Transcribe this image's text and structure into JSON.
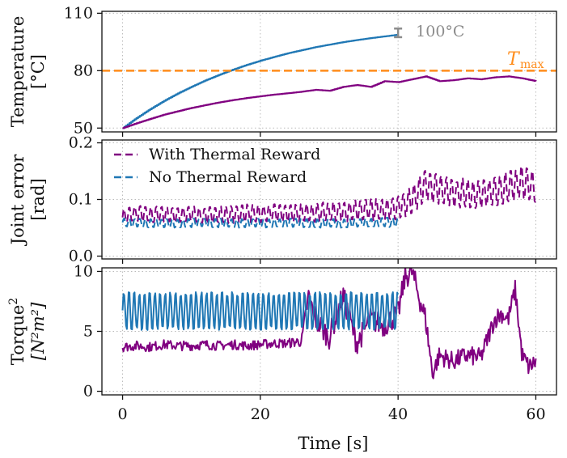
{
  "chart_data": [
    {
      "type": "line",
      "panel": "top",
      "ylabel": [
        "Temperature",
        "[°C]"
      ],
      "ylim": [
        48,
        111
      ],
      "yticks": [
        50,
        80,
        110
      ],
      "xlim": [
        -3,
        63
      ],
      "grid": true,
      "annotations": {
        "limit_label": "T",
        "limit_sub": "max",
        "limit_value": 80,
        "limit_color": "#ff8c1a",
        "error_label": "100°C",
        "error_x": 40,
        "error_range": [
          97.5,
          102
        ],
        "error_color": "#8c8c8c"
      },
      "series": [
        {
          "name": "No Thermal Reward",
          "color": "#1f77b4",
          "style": "step",
          "x": [
            0,
            2,
            4,
            6,
            8,
            10,
            12,
            14,
            16,
            18,
            20,
            22,
            24,
            26,
            28,
            30,
            32,
            34,
            36,
            38,
            40
          ],
          "y": [
            50,
            55.2,
            59.9,
            64.2,
            68.1,
            71.6,
            74.9,
            77.8,
            80.5,
            83,
            85.2,
            87.2,
            89.1,
            90.7,
            92.3,
            93.6,
            94.9,
            96,
            97,
            97.9,
            98.8
          ]
        },
        {
          "name": "With Thermal Reward",
          "color": "#800080",
          "style": "step",
          "x": [
            0,
            2,
            4,
            6,
            8,
            10,
            12,
            14,
            16,
            18,
            20,
            22,
            24,
            26,
            28,
            30,
            32,
            34,
            36,
            38,
            40,
            42,
            44,
            46,
            48,
            50,
            52,
            54,
            56,
            58,
            60
          ],
          "y": [
            50,
            52.5,
            54.8,
            57,
            58.8,
            60.5,
            62,
            63.4,
            64.6,
            65.7,
            66.6,
            67.5,
            68.2,
            69,
            70,
            69.5,
            71.5,
            72.5,
            71.5,
            74.5,
            74,
            75.5,
            77,
            74.5,
            75,
            76,
            75.5,
            76.5,
            77,
            76,
            74.5
          ]
        }
      ]
    },
    {
      "type": "line",
      "panel": "middle",
      "ylabel": [
        "Joint error",
        "[rad]"
      ],
      "ylim": [
        -0.005,
        0.205
      ],
      "yticks": [
        0.0,
        0.1,
        0.2
      ],
      "ytick_labels": [
        "0.0",
        "0.1",
        "0.2"
      ],
      "xlim": [
        -3,
        63
      ],
      "grid": true,
      "legend": {
        "placement": "top-left"
      },
      "series": [
        {
          "name": "With Thermal Reward",
          "color": "#800080",
          "style": "dashed",
          "x": [
            0,
            2,
            4,
            6,
            8,
            10,
            12,
            14,
            16,
            18,
            20,
            22,
            24,
            26,
            28,
            30,
            32,
            34,
            36,
            38,
            40,
            42,
            44,
            46,
            48,
            50,
            52,
            54,
            56,
            58,
            60
          ],
          "y": [
            0.07,
            0.076,
            0.073,
            0.074,
            0.072,
            0.075,
            0.071,
            0.074,
            0.073,
            0.076,
            0.074,
            0.077,
            0.075,
            0.076,
            0.077,
            0.078,
            0.079,
            0.08,
            0.082,
            0.081,
            0.085,
            0.1,
            0.125,
            0.118,
            0.11,
            0.112,
            0.108,
            0.115,
            0.122,
            0.13,
            0.12
          ],
          "oscillation_amplitude": [
            0.013,
            0.014,
            0.014,
            0.015,
            0.014,
            0.014,
            0.015,
            0.015,
            0.016,
            0.016,
            0.016,
            0.015,
            0.016,
            0.017,
            0.017,
            0.018,
            0.018,
            0.019,
            0.02,
            0.02,
            0.021,
            0.025,
            0.03,
            0.028,
            0.025,
            0.027,
            0.025,
            0.027,
            0.028,
            0.03,
            0.028
          ]
        },
        {
          "name": "No Thermal Reward",
          "color": "#1f77b4",
          "style": "dashed",
          "x": [
            0,
            4,
            8,
            12,
            16,
            20,
            24,
            28,
            32,
            36,
            40
          ],
          "y": [
            0.059,
            0.058,
            0.058,
            0.059,
            0.058,
            0.058,
            0.059,
            0.058,
            0.058,
            0.059,
            0.06
          ],
          "oscillation_amplitude": [
            0.008,
            0.008,
            0.008,
            0.008,
            0.008,
            0.008,
            0.008,
            0.008,
            0.008,
            0.008,
            0.009
          ]
        }
      ]
    },
    {
      "type": "line",
      "panel": "bottom",
      "ylabel": [
        "Torque²",
        "[N²m²]"
      ],
      "ylim": [
        -0.3,
        10.3
      ],
      "yticks": [
        0,
        5,
        10
      ],
      "xlim": [
        -3,
        63
      ],
      "xticks": [
        0,
        20,
        40,
        60
      ],
      "xlabel": "Time [s]",
      "grid": true,
      "series": [
        {
          "name": "With Thermal Reward",
          "color": "#800080",
          "style": "solid",
          "x": [
            0,
            2,
            4,
            6,
            8,
            10,
            12,
            14,
            16,
            18,
            20,
            22,
            24,
            26,
            27,
            28,
            30,
            32,
            34,
            36,
            38,
            40,
            41,
            42,
            43,
            44,
            45,
            46,
            48,
            50,
            52,
            54,
            55,
            56,
            57,
            58,
            59,
            60
          ],
          "y": [
            3.7,
            3.8,
            3.7,
            3.9,
            3.8,
            3.8,
            3.9,
            3.8,
            3.9,
            3.8,
            3.9,
            4,
            4,
            4.2,
            8,
            6,
            4.5,
            8,
            4,
            6,
            5.5,
            6.5,
            9.5,
            10,
            8,
            6,
            1.5,
            3,
            2.5,
            3,
            2.8,
            6,
            6.5,
            6,
            8.5,
            3,
            2,
            2.5
          ],
          "noise_amplitude": [
            0.4,
            0.4,
            0.4,
            0.4,
            0.4,
            0.4,
            0.4,
            0.4,
            0.4,
            0.4,
            0.4,
            0.4,
            0.4,
            0.5,
            0.8,
            1,
            1,
            1,
            1,
            1,
            1,
            1,
            1,
            1,
            1,
            1,
            0.8,
            0.8,
            0.8,
            0.8,
            0.8,
            0.8,
            0.8,
            0.8,
            0.8,
            0.8,
            0.8,
            0.8
          ]
        },
        {
          "name": "No Thermal Reward",
          "color": "#1f77b4",
          "style": "solid",
          "x": [
            0,
            10,
            20,
            30,
            40
          ],
          "y": [
            6.7,
            6.7,
            6.7,
            6.7,
            6.7
          ],
          "oscillation_amplitude": [
            1.6,
            1.6,
            1.6,
            1.6,
            1.6
          ]
        }
      ]
    }
  ]
}
